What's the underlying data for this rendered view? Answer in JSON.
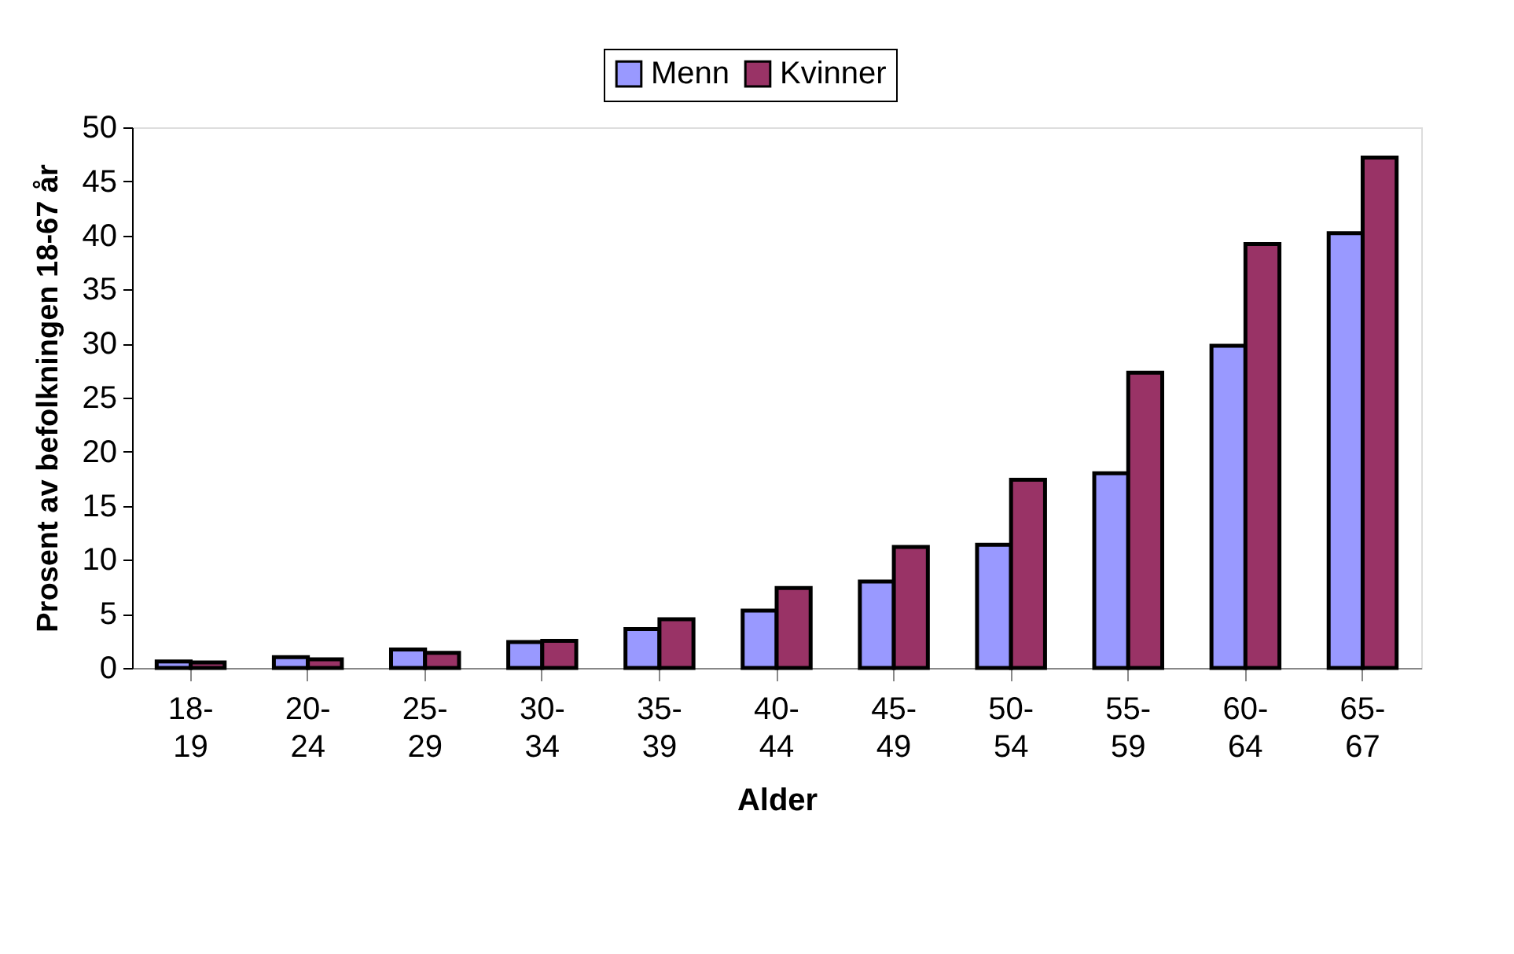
{
  "chart_data": {
    "type": "bar",
    "xlabel": "Alder",
    "ylabel": "Prosent av befolkningen 18-67 år",
    "categories": [
      "18-19",
      "20-24",
      "25-29",
      "30-34",
      "35-39",
      "40-44",
      "45-49",
      "50-54",
      "55-59",
      "60-64",
      "65-67"
    ],
    "series": [
      {
        "name": "Menn",
        "color": "#9999ff",
        "values": [
          0.6,
          1.0,
          1.7,
          2.4,
          3.6,
          5.3,
          8.0,
          11.4,
          18.0,
          29.8,
          40.2
        ]
      },
      {
        "name": "Kvinner",
        "color": "#993366",
        "values": [
          0.5,
          0.8,
          1.4,
          2.5,
          4.5,
          7.4,
          11.2,
          17.4,
          27.3,
          39.2,
          47.2
        ]
      }
    ],
    "ylim": [
      0,
      50
    ],
    "yticks": [
      0,
      5,
      10,
      15,
      20,
      25,
      30,
      35,
      40,
      45,
      50
    ],
    "grid": false,
    "legend": "top"
  }
}
